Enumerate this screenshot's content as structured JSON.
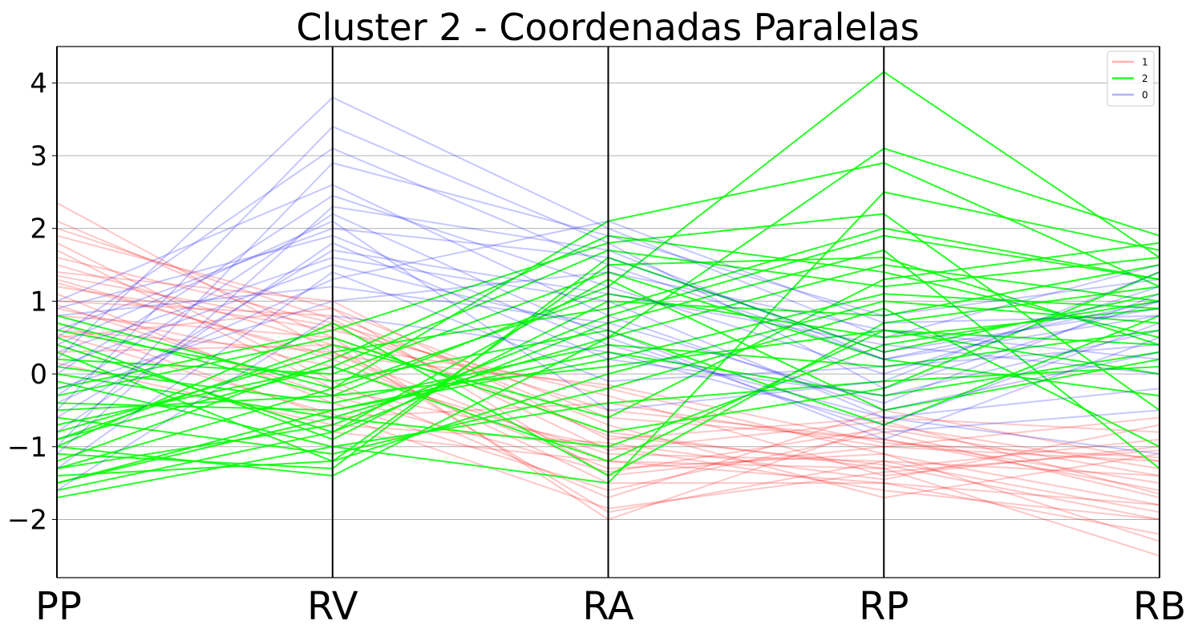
{
  "chart_data": {
    "type": "parallel-coordinates",
    "title": "Cluster 2 - Coordenadas Paralelas",
    "axes": [
      "PP",
      "RV",
      "RA",
      "RP",
      "RB"
    ],
    "ylim": [
      -2.8,
      4.5
    ],
    "yticks": [
      -2,
      -1,
      0,
      1,
      2,
      3,
      4
    ],
    "ytick_labels": [
      "−2",
      "−1",
      "0",
      "1",
      "2",
      "3",
      "4"
    ],
    "grid": true,
    "legend_position": "top-right",
    "series": [
      {
        "name": "1",
        "color": "#ff0000",
        "opacity": 0.22,
        "lines": [
          [
            2.35,
            0.3,
            -1.2,
            -1.5,
            -1.8
          ],
          [
            2.1,
            0.5,
            -0.8,
            -1.3,
            -2.5
          ],
          [
            1.9,
            0.9,
            -1.4,
            -1.0,
            -1.2
          ],
          [
            1.7,
            -0.2,
            -1.0,
            -1.6,
            -2.0
          ],
          [
            1.6,
            0.7,
            -0.5,
            -0.9,
            -1.6
          ],
          [
            1.5,
            0.4,
            -1.9,
            -1.2,
            -1.4
          ],
          [
            1.4,
            1.0,
            -0.9,
            -0.6,
            -0.8
          ],
          [
            1.3,
            0.2,
            -1.3,
            -1.1,
            -2.3
          ],
          [
            1.2,
            0.6,
            -0.3,
            -1.4,
            -1.0
          ],
          [
            1.1,
            -0.4,
            -1.6,
            -0.8,
            -1.7
          ],
          [
            1.0,
            0.8,
            -0.7,
            -1.7,
            -1.1
          ],
          [
            0.9,
            0.1,
            -1.1,
            -1.2,
            -1.9
          ],
          [
            0.8,
            0.5,
            -2.0,
            -0.7,
            -1.3
          ],
          [
            0.7,
            -0.6,
            -0.4,
            -1.0,
            -0.6
          ],
          [
            0.6,
            0.3,
            -1.5,
            -1.5,
            -2.2
          ],
          [
            0.5,
            0.9,
            -0.6,
            -0.9,
            -1.5
          ],
          [
            0.4,
            -0.8,
            -1.2,
            -1.3,
            -0.9
          ],
          [
            0.3,
            0.4,
            -0.2,
            -1.1,
            -1.8
          ],
          [
            1.8,
            -0.1,
            -1.7,
            -0.5,
            -1.2
          ],
          [
            1.35,
            0.65,
            -0.85,
            -1.25,
            -2.0
          ],
          [
            0.95,
            -0.3,
            -1.35,
            -0.75,
            -1.4
          ],
          [
            0.15,
            -0.7,
            -0.95,
            -1.45,
            -0.7
          ],
          [
            1.25,
            0.25,
            -0.15,
            -0.95,
            -1.15
          ],
          [
            2.0,
            0.75,
            -1.05,
            -0.65,
            -1.65
          ],
          [
            0.55,
            -0.55,
            -1.85,
            -1.35,
            -1.05
          ]
        ]
      },
      {
        "name": "2",
        "color": "#00ff00",
        "opacity": 0.85,
        "lines": [
          [
            -0.5,
            -0.3,
            1.2,
            4.15,
            1.6
          ],
          [
            -1.0,
            -1.4,
            0.5,
            3.1,
            1.9
          ],
          [
            0.8,
            -0.2,
            2.1,
            2.9,
            1.2
          ],
          [
            -1.7,
            -1.0,
            -1.5,
            2.5,
            1.7
          ],
          [
            -0.2,
            0.6,
            1.8,
            2.2,
            -0.5
          ],
          [
            -1.3,
            -0.7,
            0.8,
            1.9,
            1.3
          ],
          [
            0.3,
            -1.2,
            1.5,
            1.6,
            0.4
          ],
          [
            -0.9,
            0.4,
            -0.6,
            1.3,
            1.8
          ],
          [
            -1.5,
            -0.5,
            0.2,
            1.1,
            0.9
          ],
          [
            0.5,
            -0.9,
            1.0,
            0.8,
            1.5
          ],
          [
            -0.7,
            0.1,
            -1.2,
            0.6,
            0.0
          ],
          [
            -1.1,
            -1.3,
            1.6,
            0.3,
            1.1
          ],
          [
            0.1,
            -0.4,
            0.4,
            0.1,
            0.6
          ],
          [
            -0.3,
            0.5,
            -0.8,
            -0.2,
            1.4
          ],
          [
            -1.6,
            -0.8,
            1.3,
            -0.5,
            0.2
          ],
          [
            0.6,
            -0.1,
            0.6,
            -0.7,
            0.8
          ],
          [
            -0.6,
            -1.1,
            -0.2,
            0.9,
            -1.0
          ],
          [
            -1.2,
            0.2,
            1.9,
            1.4,
            0.5
          ],
          [
            0.0,
            -0.6,
            -1.0,
            0.4,
            1.0
          ],
          [
            -0.8,
            0.3,
            0.9,
            2.0,
            1.3
          ],
          [
            -1.4,
            -1.2,
            0.0,
            1.0,
            0.7
          ],
          [
            0.2,
            0.0,
            1.4,
            0.2,
            -0.3
          ],
          [
            -0.4,
            -0.5,
            0.3,
            -0.3,
            0.3
          ],
          [
            -1.0,
            0.7,
            -1.4,
            0.7,
            1.2
          ],
          [
            0.4,
            -0.8,
            0.7,
            1.7,
            -1.3
          ],
          [
            -1.3,
            -0.2,
            1.1,
            0.5,
            0.9
          ],
          [
            -0.1,
            -1.0,
            -0.4,
            -0.1,
            0.1
          ],
          [
            -0.9,
            0.1,
            1.7,
            1.2,
            1.6
          ],
          [
            0.7,
            -0.3,
            0.1,
            0.6,
            0.4
          ],
          [
            -1.5,
            -0.6,
            0.5,
            1.5,
            1.0
          ]
        ]
      },
      {
        "name": "0",
        "color": "#0000ff",
        "opacity": 0.22,
        "lines": [
          [
            0.2,
            3.8,
            2.0,
            0.5,
            1.5
          ],
          [
            -0.5,
            3.4,
            1.8,
            -0.2,
            1.0
          ],
          [
            0.5,
            3.1,
            1.5,
            0.2,
            0.8
          ],
          [
            -1.0,
            2.9,
            1.9,
            0.8,
            1.3
          ],
          [
            1.0,
            2.6,
            0.8,
            -0.5,
            0.3
          ],
          [
            0.0,
            2.45,
            1.2,
            0.0,
            1.2
          ],
          [
            -0.3,
            2.2,
            0.5,
            -0.8,
            -0.5
          ],
          [
            0.6,
            2.0,
            1.6,
            0.3,
            0.9
          ],
          [
            -0.8,
            1.8,
            0.2,
            -0.3,
            0.6
          ],
          [
            0.3,
            1.6,
            1.0,
            -0.6,
            -1.1
          ],
          [
            -1.3,
            1.4,
            -0.1,
            0.1,
            0.4
          ],
          [
            0.8,
            1.2,
            0.7,
            -0.4,
            1.1
          ],
          [
            -0.2,
            1.0,
            1.4,
            0.6,
            0.2
          ],
          [
            -1.6,
            0.8,
            0.3,
            -0.7,
            0.7
          ],
          [
            0.4,
            2.1,
            -0.5,
            -0.1,
            1.4
          ],
          [
            -0.6,
            1.7,
            1.1,
            0.4,
            0.0
          ],
          [
            0.1,
            1.5,
            0.6,
            -0.9,
            0.5
          ],
          [
            -1.1,
            2.3,
            1.7,
            0.2,
            1.0
          ],
          [
            0.9,
            1.9,
            0.4,
            -0.6,
            -0.2
          ],
          [
            -0.4,
            1.3,
            2.1,
            0.7,
            0.8
          ]
        ]
      }
    ]
  }
}
